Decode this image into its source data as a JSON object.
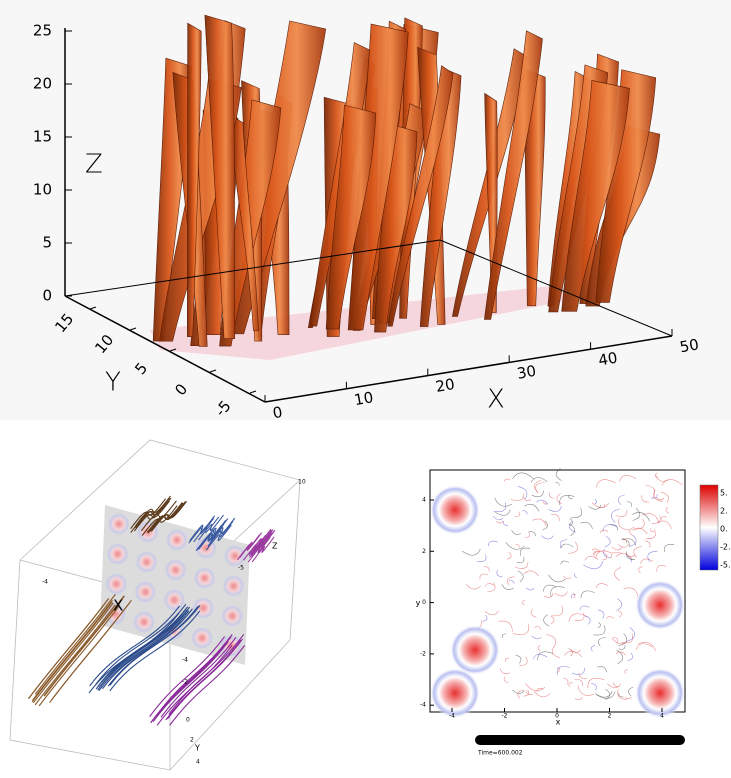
{
  "top_panel": {
    "z_label": "Z",
    "y_label": "Y",
    "x_label": "X",
    "z_ticks": [
      "0",
      "5",
      "10",
      "15",
      "20",
      "25"
    ],
    "y_ticks": [
      "15",
      "10",
      "5",
      "0",
      "-5"
    ],
    "x_ticks": [
      "0",
      "10",
      "20",
      "30",
      "40",
      "50"
    ]
  },
  "bottom_left": {
    "x_label": "X",
    "y_label": "Y",
    "z_label": "Z",
    "ticks": [
      "10",
      "-4",
      "-5",
      "-4",
      "-2",
      "0",
      "2",
      "4"
    ]
  },
  "bottom_right": {
    "x_label": "x",
    "y_label": "y",
    "x_ticks": [
      "-4",
      "-2",
      "0",
      "2",
      "4"
    ],
    "y_ticks": [
      "4",
      "2",
      "0",
      "-2",
      "-4"
    ],
    "colorbar_ticks": [
      "5.",
      "2.",
      "0.",
      "-2.",
      "-5."
    ],
    "time_label": "Time=600.002"
  }
}
